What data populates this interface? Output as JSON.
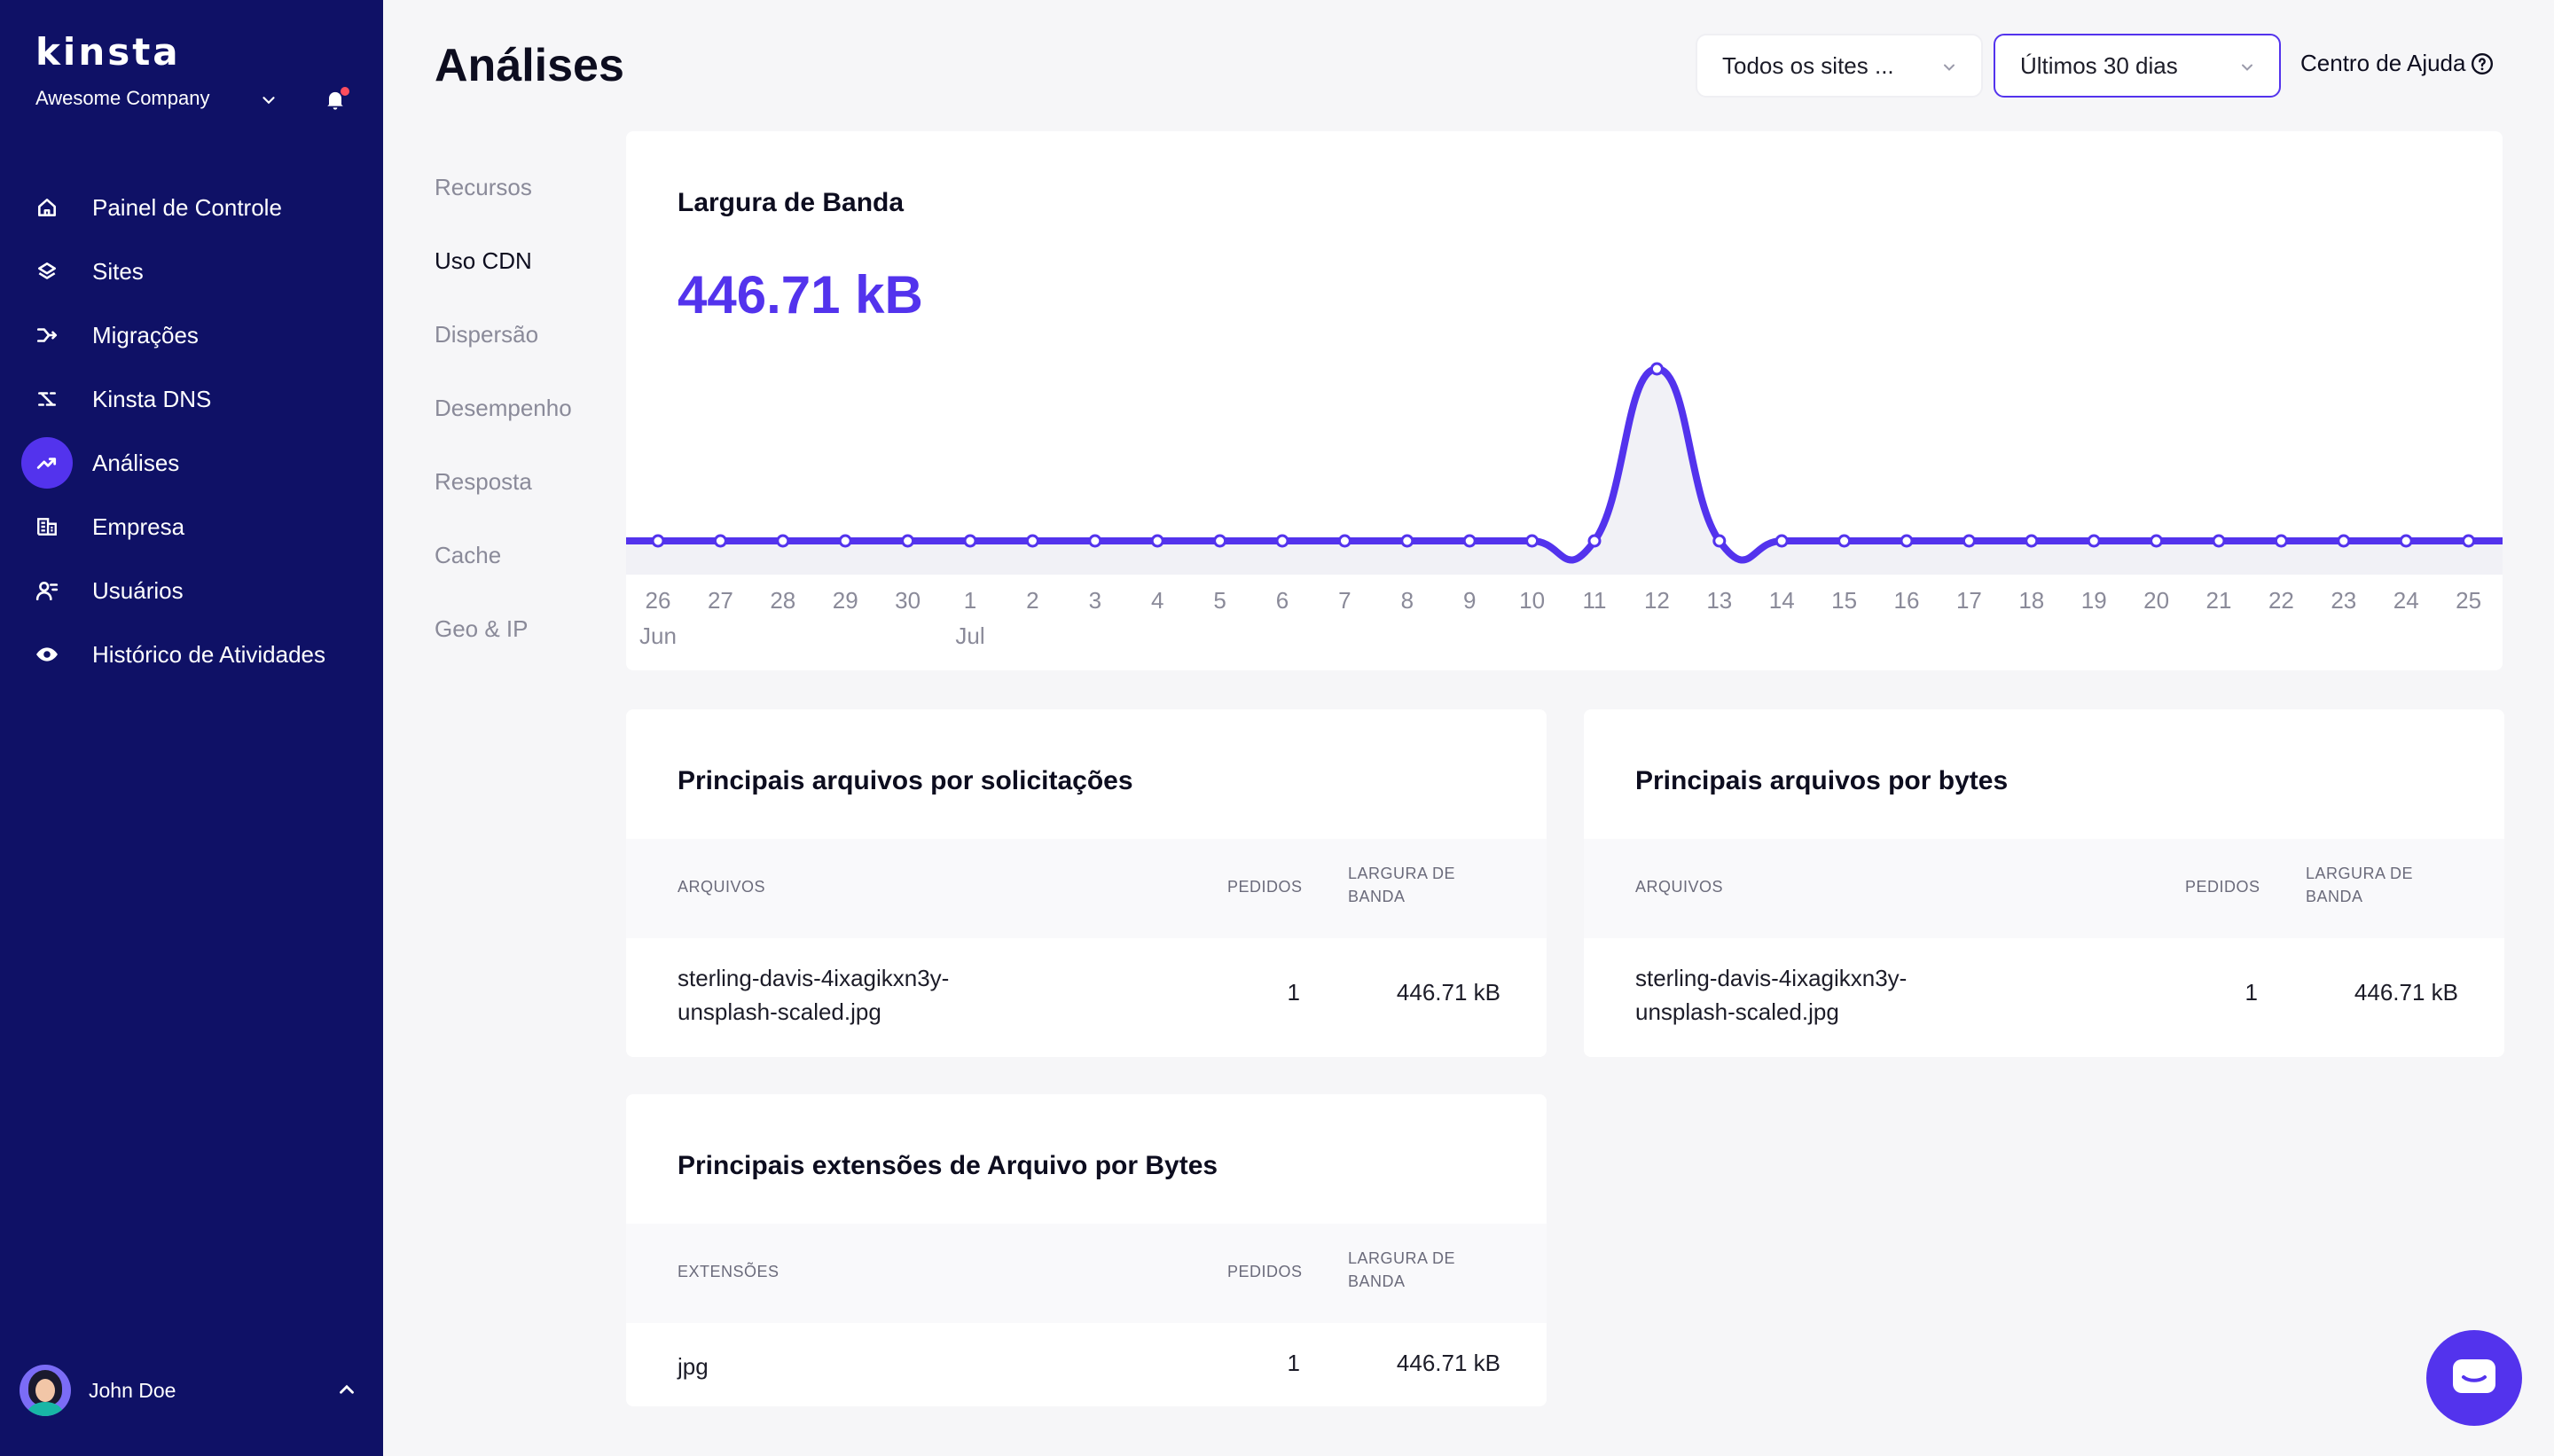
{
  "sidebar": {
    "logo": "kinsta",
    "company": "Awesome Company",
    "items": [
      {
        "label": "Painel de Controle",
        "icon": "home-icon"
      },
      {
        "label": "Sites",
        "icon": "layers-icon"
      },
      {
        "label": "Migrações",
        "icon": "migration-icon"
      },
      {
        "label": "Kinsta DNS",
        "icon": "dns-icon"
      },
      {
        "label": "Análises",
        "icon": "analytics-icon",
        "active": true
      },
      {
        "label": "Empresa",
        "icon": "company-icon"
      },
      {
        "label": "Usuários",
        "icon": "users-icon"
      },
      {
        "label": "Histórico de Atividades",
        "icon": "eye-icon"
      }
    ],
    "user": "John Doe"
  },
  "header": {
    "title": "Análises",
    "sites_select": "Todos os sites ...",
    "period_select": "Últimos 30 dias",
    "help": "Centro de Ajuda"
  },
  "subnav": [
    "Recursos",
    "Uso CDN",
    "Dispersão",
    "Desempenho",
    "Resposta",
    "Cache",
    "Geo & IP"
  ],
  "subnav_active": "Uso CDN",
  "bandwidth": {
    "title": "Largura de Banda",
    "total": "446.71 kB"
  },
  "colors": {
    "accent": "#5333ed",
    "sidebar": "#0f1166"
  },
  "chart_data": {
    "type": "line",
    "x": [
      "26",
      "27",
      "28",
      "29",
      "30",
      "1",
      "2",
      "3",
      "4",
      "5",
      "6",
      "7",
      "8",
      "9",
      "10",
      "11",
      "12",
      "13",
      "14",
      "15",
      "16",
      "17",
      "18",
      "19",
      "20",
      "21",
      "22",
      "23",
      "24",
      "25"
    ],
    "month_labels": [
      {
        "at": "26",
        "label": "Jun"
      },
      {
        "at": "1",
        "label": "Jul"
      }
    ],
    "series": [
      {
        "values": [
          0,
          0,
          0,
          0,
          0,
          0,
          0,
          0,
          0,
          0,
          0,
          0,
          0,
          0,
          0,
          0,
          446.71,
          0,
          0,
          0,
          0,
          0,
          0,
          0,
          0,
          0,
          0,
          0,
          0,
          0
        ]
      }
    ],
    "grid": false
  },
  "tables": {
    "by_requests": {
      "title": "Principais arquivos por solicitações",
      "col_file": "ARQUIVOS",
      "col_req": "PEDIDOS",
      "col_bw": "LARGURA DE BANDA",
      "rows": [
        {
          "file": "sterling-davis-4ixagikxn3y-unsplash-scaled.jpg",
          "requests": "1",
          "bandwidth": "446.71 kB"
        }
      ]
    },
    "by_bytes": {
      "title": "Principais arquivos por bytes",
      "col_file": "ARQUIVOS",
      "col_req": "PEDIDOS",
      "col_bw": "LARGURA DE BANDA",
      "rows": [
        {
          "file": "sterling-davis-4ixagikxn3y-unsplash-scaled.jpg",
          "requests": "1",
          "bandwidth": "446.71 kB"
        }
      ]
    },
    "extensions": {
      "title": "Principais extensões de Arquivo por Bytes",
      "col_file": "EXTENSÕES",
      "col_req": "PEDIDOS",
      "col_bw": "LARGURA DE BANDA",
      "rows": [
        {
          "file": "jpg",
          "requests": "1",
          "bandwidth": "446.71 kB"
        }
      ]
    }
  }
}
